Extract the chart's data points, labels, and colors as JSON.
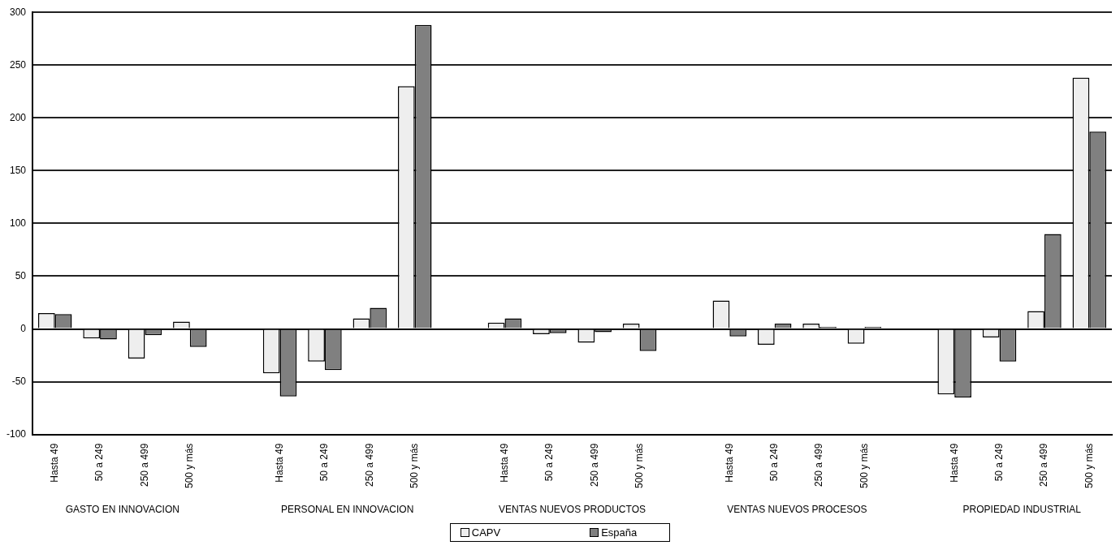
{
  "chart_data": {
    "type": "bar",
    "categories": [
      "Hasta 49",
      "50 a 249",
      "250 a 499",
      "500 y más",
      null,
      "Hasta 49",
      "50 a 249",
      "250 a 499",
      "500 y más",
      null,
      "Hasta 49",
      "50 a 249",
      "250 a 499",
      "500 y más",
      null,
      "Hasta 49",
      "50 a 249",
      "250 a 499",
      "500 y más",
      null,
      "Hasta 49",
      "50 a 249",
      "250 a 499",
      "500 y más"
    ],
    "series": [
      {
        "name": "CAPV",
        "color": "#eeeeee",
        "values": [
          15,
          -9,
          -28,
          7,
          null,
          -42,
          -31,
          10,
          230,
          null,
          6,
          -5,
          -13,
          5,
          null,
          27,
          -15,
          5,
          -14,
          null,
          -62,
          -8,
          17,
          238
        ]
      },
      {
        "name": "España",
        "color": "#808080",
        "values": [
          14,
          -10,
          -6,
          -17,
          null,
          -64,
          -39,
          20,
          288,
          null,
          10,
          -4,
          -3,
          -21,
          null,
          -7,
          5,
          2,
          2,
          null,
          -65,
          -31,
          90,
          187
        ]
      }
    ],
    "ylim": [
      -100,
      300
    ],
    "yticks": [
      -100,
      -50,
      0,
      50,
      100,
      150,
      200,
      250,
      300
    ],
    "grid": "y",
    "legend": "bottom",
    "annotations": [
      "GASTO EN INNOVACION",
      "PERSONAL EN INNOVACION",
      "VENTAS NUEVOS PRODUCTOS",
      "VENTAS NUEVOS PROCESOS",
      "PROPIEDAD INDUSTRIAL"
    ]
  }
}
